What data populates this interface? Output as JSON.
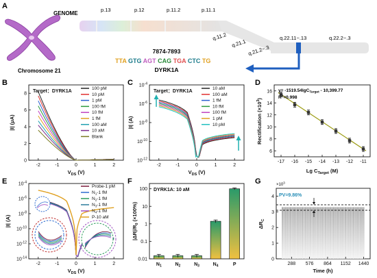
{
  "panel_labels": {
    "a": "A",
    "b": "B",
    "c": "C",
    "d": "D",
    "e": "E",
    "f": "F",
    "g": "G"
  },
  "genome": {
    "label": "GENOME",
    "chromosome_label": "Chromosome 21",
    "bands_upper": [
      "p.13",
      "p.12",
      "p.11.2",
      "p.11.1"
    ],
    "bands_lower": [
      "q.11.2",
      "q.21.1",
      "q.21.2~.3",
      "q.22.11~.13",
      "q.22.2~.3"
    ],
    "position": "7874-7893",
    "gene": "DYRK1A",
    "sequence": [
      {
        "text": "TTA",
        "color": "#e0a020"
      },
      {
        "text": " GTG ",
        "color": "#1a7a8a"
      },
      {
        "text": "AGT",
        "color": "#c060c0"
      },
      {
        "text": " CAG ",
        "color": "#2a8a3a"
      },
      {
        "text": "TGA",
        "color": "#e05050"
      },
      {
        "text": " CTC ",
        "color": "#1a7a8a"
      },
      {
        "text": "TG",
        "color": "#e0a020"
      }
    ]
  },
  "panel_b": {
    "target": "Target：DYRK1A",
    "xlabel_main": "V",
    "xlabel_sub": "DS",
    "xlabel_unit": " (V)",
    "ylabel": "|I| (μA)",
    "y_ticks": [
      "0",
      "2",
      "4",
      "6",
      "8"
    ],
    "x_ticks": [
      "-2",
      "-1",
      "0",
      "1",
      "2"
    ]
  },
  "panel_c": {
    "target": "Target：DYRK1A",
    "xlabel_main": "V",
    "xlabel_sub": "DS",
    "xlabel_unit": " (V)",
    "ylabel": "|I| (A)",
    "y_ticks": [
      {
        "b": "10",
        "e": "-4"
      },
      {
        "b": "10",
        "e": "-6"
      },
      {
        "b": "10",
        "e": "-8"
      },
      {
        "b": "10",
        "e": "-10"
      },
      {
        "b": "10",
        "e": "-12"
      }
    ],
    "x_ticks": [
      "-2",
      "-1",
      "0",
      "1",
      "2"
    ]
  },
  "panel_d": {
    "equation": "y= -1519.54lgC",
    "equation_sub": "Target",
    "equation_tail": " - 10,399.77",
    "r2": "R",
    "r2_sup": "2",
    "r2_tail": "=0.998",
    "ylabel_main": "Rectification (×10",
    "ylabel_sup": "3",
    "ylabel_end": ")",
    "xlabel_main": "Lg C",
    "xlabel_sub": "Target",
    "xlabel_unit": " (M)",
    "x_ticks": [
      "-17",
      "-16",
      "-15",
      "-14",
      "-13",
      "-12",
      "-11"
    ],
    "y_ticks": [
      "6",
      "8",
      "10",
      "12",
      "14",
      "16"
    ]
  },
  "panel_e": {
    "xlabel_main": "V",
    "xlabel_sub": "DS",
    "xlabel_unit": " (V)",
    "ylabel": "|I| (A)",
    "y_ticks": [
      {
        "b": "10",
        "e": "-4"
      },
      {
        "b": "10",
        "e": "-6"
      },
      {
        "b": "10",
        "e": "-8"
      },
      {
        "b": "10",
        "e": "-10"
      },
      {
        "b": "10",
        "e": "-12"
      },
      {
        "b": "10",
        "e": "-14"
      }
    ],
    "x_ticks": [
      "-2",
      "-1",
      "0",
      "1",
      "2"
    ]
  },
  "panel_f": {
    "title": "DYRK1A: 10 aM",
    "ylabel": "|ΔR|/R",
    "ylabel_sub": "0",
    "ylabel_unit": " (×100%)",
    "y_ticks": [
      "100",
      "10",
      "1",
      "0.1",
      "0.01"
    ],
    "categories": [
      {
        "b": "N",
        "s": "1"
      },
      {
        "b": "N",
        "s": "2"
      },
      {
        "b": "N",
        "s": "3"
      },
      {
        "b": "N",
        "s": "4"
      },
      {
        "b": "P",
        "s": ""
      }
    ]
  },
  "panel_g": {
    "multiplier": "×10",
    "multiplier_sup": "3",
    "pv": "PV=9.86%",
    "ylabel": "ΔR",
    "ylabel_sub": "C",
    "xlabel": "Time (h)",
    "x_ticks": [
      "288",
      "576",
      "864",
      "1152",
      "1440"
    ],
    "y_ticks": [
      "0",
      "1",
      "2",
      "3",
      "4"
    ]
  },
  "colors": {
    "blue_arrow": "#1f5fbf",
    "fit_line": "#9a9a10",
    "bar_green": "#2a9a6a",
    "bar_yellow": "#f0c040",
    "pv_text": "#2a8fb8"
  },
  "chart_data": [
    {
      "type": "line",
      "panel": "B",
      "x": [
        -2.0,
        -1.5,
        -1.0,
        -0.5,
        0.0,
        0.5,
        1.0,
        1.5,
        2.0
      ],
      "series": [
        {
          "name": "100 pM",
          "color": "#222222",
          "values": [
            8.2,
            6.3,
            3.7,
            1.0,
            0,
            0.04,
            0.08,
            0.1,
            0.12
          ]
        },
        {
          "name": "10 pM",
          "color": "#e03030",
          "values": [
            7.7,
            5.9,
            3.4,
            0.9,
            0,
            0.04,
            0.08,
            0.1,
            0.12
          ]
        },
        {
          "name": "1 pM",
          "color": "#2a5fd0",
          "values": [
            7.1,
            5.4,
            3.1,
            0.8,
            0,
            0.04,
            0.07,
            0.09,
            0.11
          ]
        },
        {
          "name": "100 fM",
          "color": "#2a9a3a",
          "values": [
            6.5,
            4.9,
            2.8,
            0.7,
            0,
            0.04,
            0.07,
            0.09,
            0.11
          ]
        },
        {
          "name": "10 fM",
          "color": "#c040c0",
          "values": [
            5.9,
            4.5,
            2.5,
            0.6,
            0,
            0.03,
            0.06,
            0.08,
            0.1
          ]
        },
        {
          "name": "1 fM",
          "color": "#e0a020",
          "values": [
            5.3,
            4.0,
            2.2,
            0.5,
            0,
            0.03,
            0.06,
            0.08,
            0.1
          ]
        },
        {
          "name": "100 aM",
          "color": "#20a0b0",
          "values": [
            4.7,
            3.5,
            1.9,
            0.4,
            0,
            0.03,
            0.05,
            0.07,
            0.09
          ]
        },
        {
          "name": "10 aM",
          "color": "#7a2a8a",
          "values": [
            4.2,
            3.1,
            1.6,
            0.35,
            0,
            0.03,
            0.05,
            0.07,
            0.09
          ]
        },
        {
          "name": "Blank",
          "color": "#7a7a20",
          "values": [
            3.6,
            2.6,
            1.3,
            0.3,
            0,
            0.02,
            0.04,
            0.06,
            0.08
          ]
        }
      ],
      "xlabel": "V_DS (V)",
      "ylabel": "|I| (μA)",
      "xlim": [
        -2.5,
        2.5
      ],
      "ylim": [
        0,
        9
      ]
    },
    {
      "type": "line",
      "panel": "C",
      "log_y": true,
      "series": [
        {
          "name": "10 aM",
          "color": "#222222"
        },
        {
          "name": "100 aM",
          "color": "#e03030"
        },
        {
          "name": "1 fM",
          "color": "#2a5fd0"
        },
        {
          "name": "10 fM",
          "color": "#2a9a3a"
        },
        {
          "name": "100 fM",
          "color": "#c040c0"
        },
        {
          "name": "1 pM",
          "color": "#e0a020"
        },
        {
          "name": "10 pM",
          "color": "#20c0c0"
        }
      ],
      "xlabel": "V_DS (V)",
      "ylabel": "|I| (A)",
      "xlim": [
        -2.5,
        2.5
      ],
      "ylim": [
        1e-12,
        0.0001
      ]
    },
    {
      "type": "scatter",
      "panel": "D",
      "x": [
        -17,
        -16,
        -15,
        -14,
        -13,
        -12,
        -11
      ],
      "values": [
        15.4,
        13.7,
        12.4,
        10.8,
        9.3,
        7.7,
        6.3
      ],
      "fit": {
        "slope": -1519.54,
        "intercept": -10399.77,
        "r2": 0.998
      },
      "xlabel": "Lg C_Target (M)",
      "ylabel": "Rectification (×10^3)",
      "xlim": [
        -17.5,
        -10.5
      ],
      "ylim": [
        5,
        17
      ]
    },
    {
      "type": "line",
      "panel": "E",
      "log_y": true,
      "series": [
        {
          "name": "Probe-1 pM",
          "color": "#7a1a3a"
        },
        {
          "name": "N1-1 fM",
          "color": "#2a6ad0",
          "label_sub": "1"
        },
        {
          "name": "N2-1 fM",
          "color": "#2a9a5a",
          "label_sub": "2"
        },
        {
          "name": "N3-1 fM",
          "color": "#2a7a9a",
          "label_sub": "3"
        },
        {
          "name": "N4-1 fM",
          "color": "#a050c0",
          "label_sub": "4"
        },
        {
          "name": "P-10 aM",
          "color": "#e0a020"
        }
      ],
      "xlabel": "V_DS (V)",
      "ylabel": "|I| (A)",
      "xlim": [
        -2.5,
        2.5
      ],
      "ylim": [
        1e-14,
        0.0001
      ]
    },
    {
      "type": "bar",
      "panel": "F",
      "log_y": true,
      "categories": [
        "N1",
        "N2",
        "N3",
        "N4",
        "P"
      ],
      "values": [
        0.015,
        0.015,
        0.015,
        1.4,
        100
      ],
      "errors": [
        0.003,
        0.003,
        0.003,
        0.25,
        12
      ],
      "title": "DYRK1A: 10 aM",
      "ylabel": "|ΔR|/R0 (×100%)",
      "ylim": [
        0.01,
        200
      ]
    },
    {
      "type": "bar",
      "panel": "G",
      "x_ticks": [
        288,
        576,
        864,
        1152,
        1440
      ],
      "values": [
        3.3,
        3.3,
        3.3,
        3.3,
        3.3,
        3.3,
        3.3,
        3.3,
        3.3,
        3.3,
        3.3,
        3.3,
        3.3,
        3.3,
        3.3,
        3.3,
        3.3,
        3.3,
        3.3,
        3.3,
        3.3,
        3.3,
        3.3,
        3.3,
        3.3,
        3.3,
        3.3,
        3.3,
        3.3,
        3.3,
        3.3,
        3.3,
        3.3,
        3.3,
        3.3,
        3.3,
        3.3,
        3.3,
        3.3,
        3.3,
        3.3,
        3.3,
        3.3,
        3.3,
        3.3,
        3.3,
        3.3,
        3.3,
        3.3,
        3.3
      ],
      "bounds": [
        3.1,
        3.45
      ],
      "pv": "PV=9.86%",
      "xlabel": "Time (h)",
      "ylabel": "ΔR_C (×10^3)",
      "ylim": [
        0,
        4.5
      ]
    }
  ]
}
